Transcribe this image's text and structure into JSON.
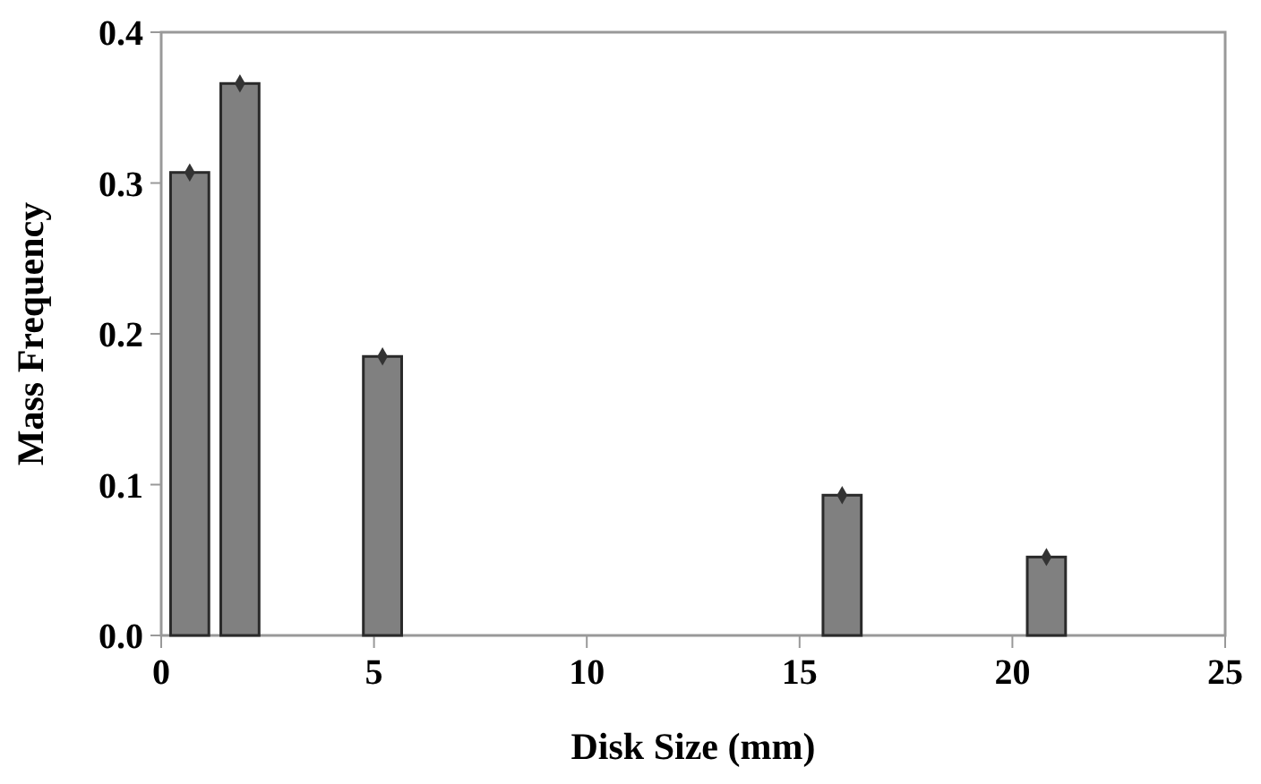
{
  "chart_data": {
    "type": "bar",
    "xlabel": "Disk Size (mm)",
    "ylabel": "Mass Frequency",
    "x": [
      0.67,
      1.85,
      5.2,
      16.0,
      20.8
    ],
    "series": [
      {
        "color": "#808080",
        "values": [
          0.307,
          0.366,
          0.185,
          0.093,
          0.052
        ]
      },
      {
        "type": "scatter",
        "color": "#333333",
        "marker": "diamond",
        "values": [
          0.307,
          0.366,
          0.185,
          0.093,
          0.052
        ]
      }
    ],
    "xlim": [
      0,
      25
    ],
    "xticks": [
      0,
      5,
      10,
      15,
      20,
      25
    ],
    "ylim": [
      0,
      0.4
    ],
    "yticks": [
      {
        "value": 0,
        "label": "0.0"
      },
      {
        "value": 0.1,
        "label": "0.1"
      },
      {
        "value": 0.2,
        "label": "0.2"
      },
      {
        "value": 0.3,
        "label": "0.3"
      },
      {
        "value": 0.4,
        "label": "0.4"
      }
    ],
    "grid": false
  }
}
